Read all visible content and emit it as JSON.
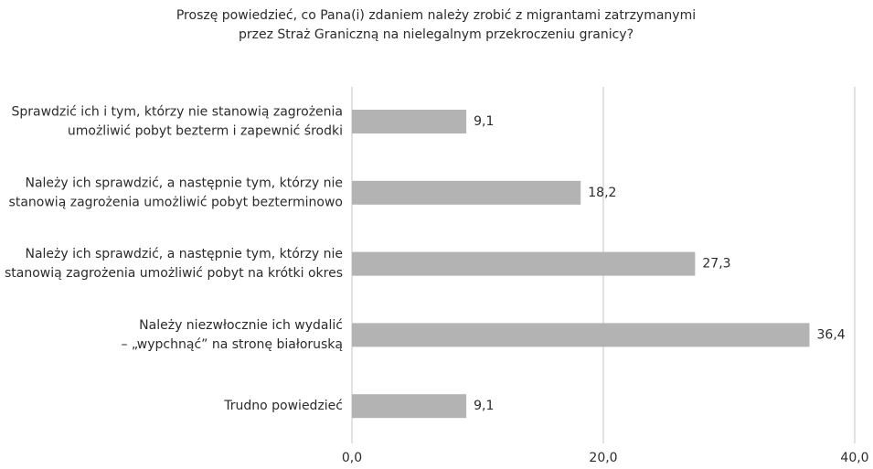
{
  "chart_data": {
    "type": "barh",
    "title": [
      "Proszę powiedzieć, co Pana(i) zdaniem należy zrobić z migrantami zatrzymanymi",
      "przez Straż Graniczną na nielegalnym przekroczeniu granicy?"
    ],
    "categories": [
      [
        "Sprawdzić ich i tym, którzy nie stanowią zagrożenia",
        "umożliwić pobyt bezterm i zapewnić środki"
      ],
      [
        "Należy ich sprawdzić, a następnie tym, którzy nie",
        "stanowią zagrożenia umożliwić pobyt bezterminowo"
      ],
      [
        "Należy ich sprawdzić, a następnie tym, którzy nie",
        "stanowią zagrożenia umożliwić pobyt na krótki okres"
      ],
      [
        "Należy niezwłocznie ich wydalić",
        "– „wypchnąć” na stronę białoruską"
      ],
      [
        "Trudno powiedzieć"
      ]
    ],
    "values": [
      9.1,
      18.2,
      27.3,
      36.4,
      9.1
    ],
    "value_labels": [
      "9,1",
      "18,2",
      "27,3",
      "36,4",
      "9,1"
    ],
    "color": "#b3b3b3",
    "xlim": [
      0,
      40
    ],
    "xticks": [
      {
        "value": 0,
        "label": "0,0"
      },
      {
        "value": 20,
        "label": "20,0"
      },
      {
        "value": 40,
        "label": "40,0"
      }
    ],
    "grid": true
  }
}
